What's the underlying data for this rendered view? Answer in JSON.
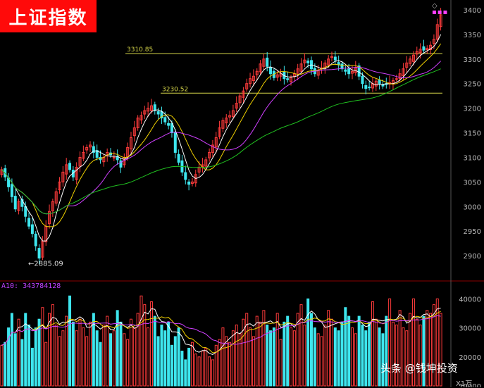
{
  "title": "上证指数",
  "watermark": "头条 @钱坤投资",
  "volume_label": "A10: 343784128",
  "volume_unit": "X1万",
  "icons": {
    "marker": "diamond-icon",
    "dots": "ellipsis-icon"
  },
  "colors": {
    "up": "#ff3b3b",
    "down": "#3ee6ee",
    "ma5": "#ffffff",
    "ma10": "#f0d000",
    "ma20": "#d040ff",
    "ma60": "#20c020",
    "hline": "#d9d94a",
    "bg": "#000000"
  },
  "chart_data": [
    {
      "type": "candlestick",
      "title": "上证指数",
      "ylim": [
        2850,
        3420
      ],
      "yticks": [
        2900,
        2950,
        3000,
        3050,
        3100,
        3150,
        3200,
        3250,
        3300,
        3350,
        3400
      ],
      "horizontal_lines": [
        {
          "value": 3310.85,
          "label": "3310.85"
        },
        {
          "value": 3230.52,
          "label": "3230.52"
        }
      ],
      "annotation": {
        "text": "←2885.09",
        "value": 2885.09
      },
      "close": [
        3075,
        3060,
        3040,
        3020,
        2995,
        3010,
        3000,
        2980,
        2960,
        2945,
        2920,
        2895,
        2930,
        2960,
        2990,
        3010,
        3030,
        3050,
        3070,
        3085,
        3075,
        3060,
        3080,
        3100,
        3110,
        3120,
        3125,
        3110,
        3100,
        3095,
        3100,
        3110,
        3105,
        3100,
        3095,
        3080,
        3100,
        3120,
        3140,
        3160,
        3180,
        3185,
        3195,
        3200,
        3205,
        3195,
        3188,
        3180,
        3172,
        3165,
        3150,
        3110,
        3090,
        3070,
        3055,
        3045,
        3050,
        3065,
        3080,
        3085,
        3095,
        3110,
        3125,
        3140,
        3160,
        3175,
        3180,
        3185,
        3195,
        3210,
        3225,
        3235,
        3250,
        3260,
        3265,
        3275,
        3290,
        3300,
        3285,
        3270,
        3262,
        3268,
        3270,
        3260,
        3258,
        3262,
        3270,
        3280,
        3290,
        3298,
        3292,
        3280,
        3270,
        3276,
        3282,
        3292,
        3300,
        3305,
        3298,
        3288,
        3280,
        3275,
        3270,
        3275,
        3282,
        3265,
        3250,
        3240,
        3242,
        3250,
        3255,
        3250,
        3245,
        3248,
        3252,
        3256,
        3260,
        3270,
        3280,
        3292,
        3300,
        3308,
        3315,
        3320,
        3318,
        3322,
        3328,
        3340,
        3370,
        3390
      ],
      "volume": [
        24000,
        25000,
        30000,
        35000,
        28000,
        33000,
        26000,
        35000,
        31000,
        23000,
        30000,
        33000,
        37000,
        25000,
        35000,
        38000,
        31000,
        27000,
        29000,
        34000,
        41000,
        32000,
        29000,
        33000,
        30000,
        27000,
        32000,
        35000,
        29000,
        25000,
        31000,
        34000,
        28000,
        29000,
        36000,
        32000,
        28000,
        26000,
        33000,
        30000,
        35000,
        41000,
        38000,
        30000,
        39000,
        34000,
        27000,
        31000,
        29000,
        32000,
        24000,
        27000,
        30000,
        22000,
        19000,
        23000,
        25000,
        21000,
        20000,
        22000,
        23000,
        20000,
        19000,
        24000,
        26000,
        30000,
        27000,
        25000,
        29000,
        31000,
        28000,
        33000,
        35000,
        30000,
        27000,
        34000,
        32000,
        36000,
        31000,
        29000,
        30000,
        35000,
        26000,
        32000,
        34000,
        30000,
        29000,
        35000,
        38000,
        31000,
        40000,
        35000,
        30000,
        28000,
        27000,
        31000,
        36000,
        33000,
        30000,
        29000,
        32000,
        37000,
        34000,
        30000,
        28000,
        34000,
        31000,
        29000,
        32000,
        39000,
        33000,
        30000,
        28000,
        34000,
        40000,
        32000,
        31000,
        36000,
        30000,
        29000,
        35000,
        40000,
        33000,
        31000,
        34000,
        36000,
        35000,
        38000,
        40000,
        35000
      ],
      "volume_ylim": [
        10000,
        43000
      ],
      "volume_yticks": [
        10000,
        20000,
        30000,
        40000
      ]
    }
  ]
}
